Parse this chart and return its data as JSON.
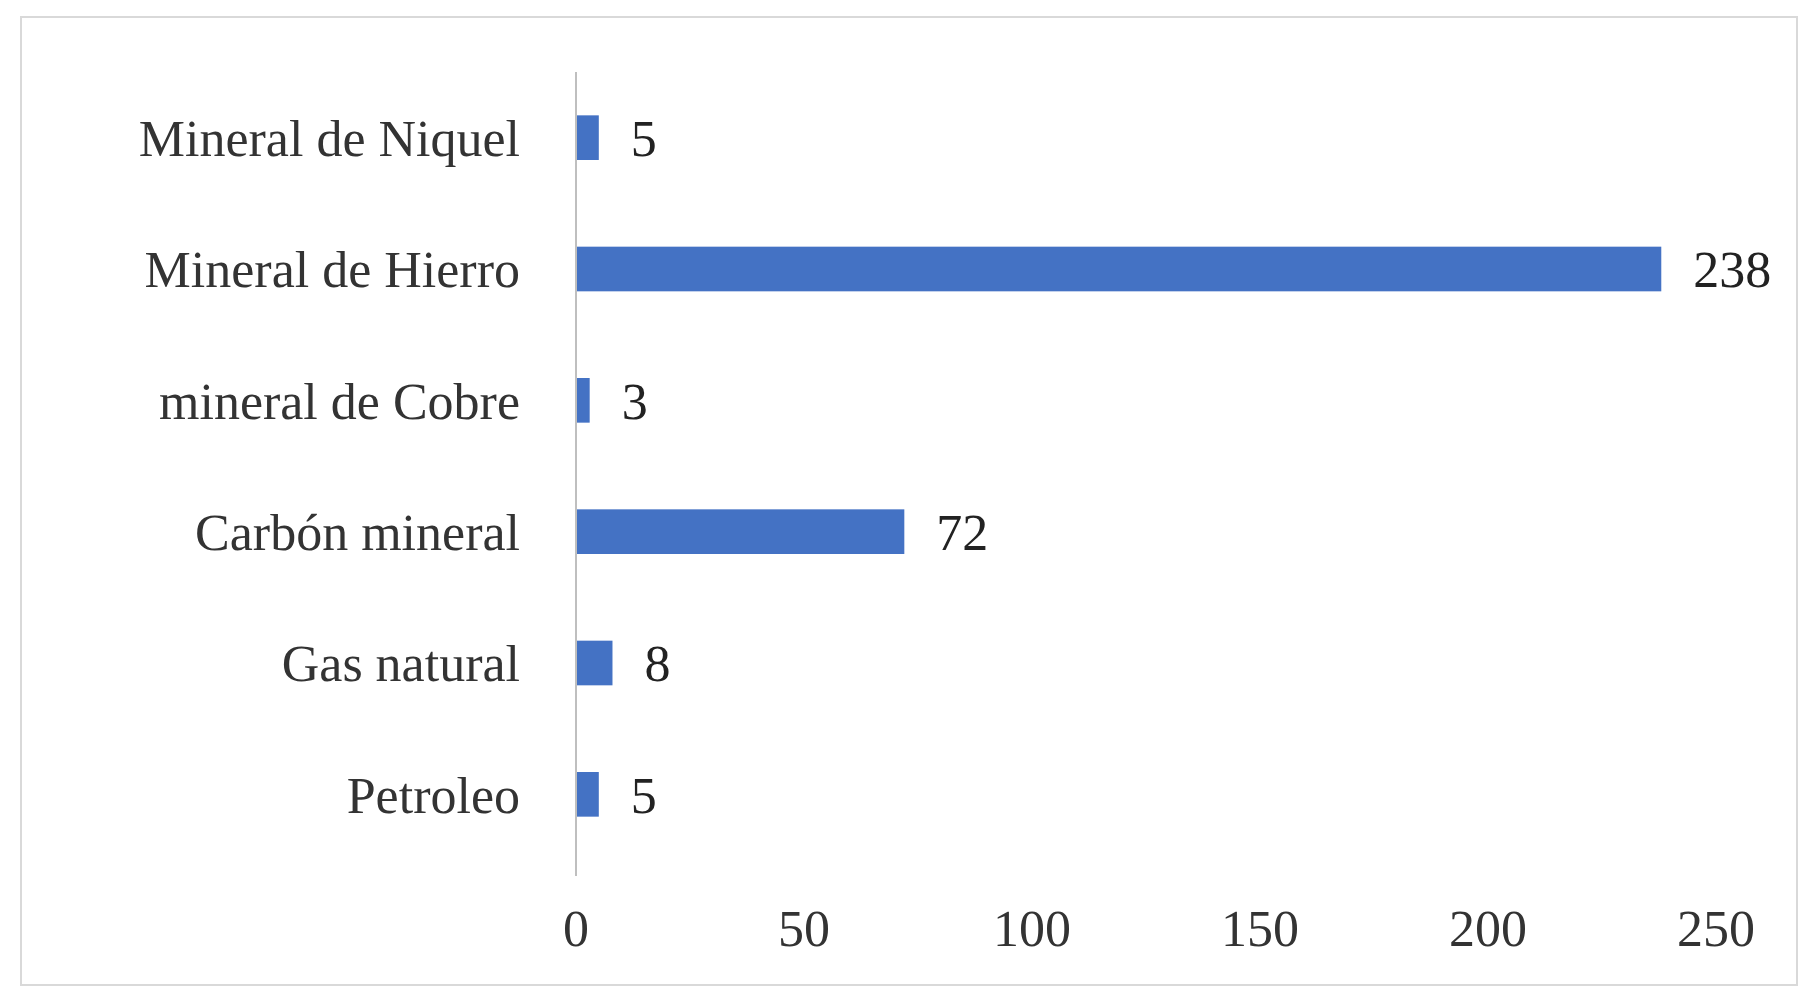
{
  "chart_data": {
    "type": "bar",
    "orientation": "horizontal",
    "categories": [
      "Mineral de Niquel",
      "Mineral de Hierro",
      "mineral de Cobre",
      "Carbón mineral",
      "Gas natural",
      "Petroleo"
    ],
    "values": [
      5,
      238,
      3,
      72,
      8,
      5
    ],
    "color": "#4472c4",
    "xlim": [
      0,
      250
    ],
    "xticks": [
      0,
      50,
      100,
      150,
      200,
      250
    ],
    "grid": false,
    "data_labels": true
  }
}
